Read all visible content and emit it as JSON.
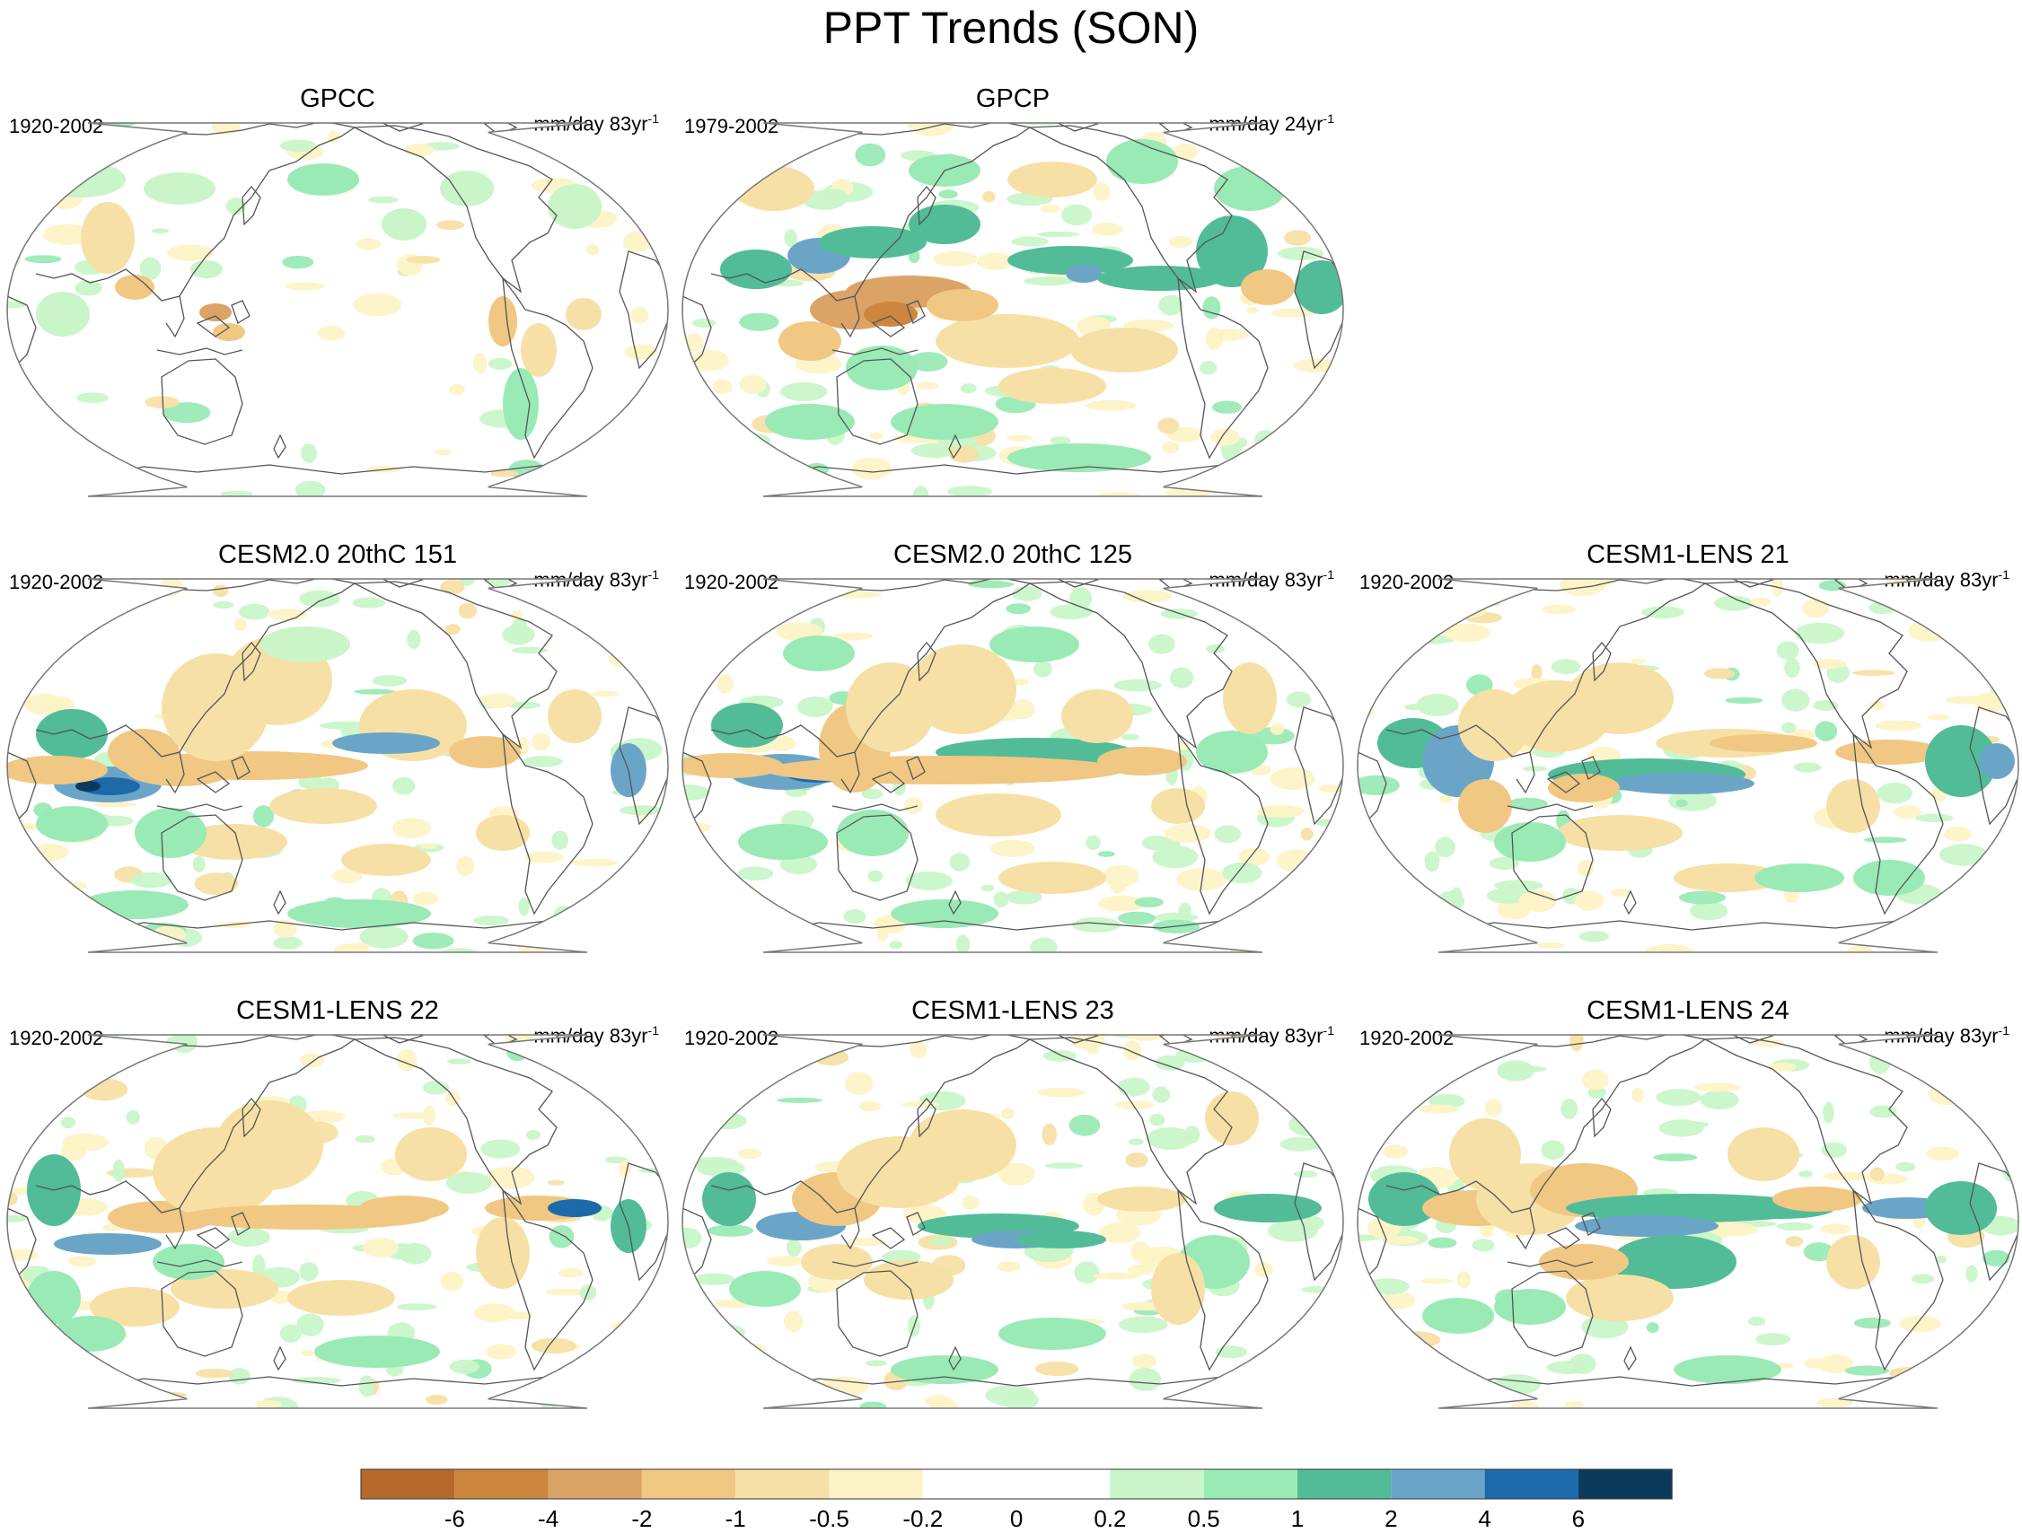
{
  "title": "PPT Trends (SON)",
  "chart_data": {
    "type": "heatmap",
    "title": "PPT Trends (SON)",
    "projection": "global map (Robinson-like), Pacific-centered",
    "panels": [
      {
        "id": "gpcc",
        "title": "GPCC",
        "period": "1920-2002",
        "unit": "mm/day 83yr",
        "unit_sup": "-1",
        "pattern": "obs-sparse"
      },
      {
        "id": "gpcp",
        "title": "GPCP",
        "period": "1979-2002",
        "unit": "mm/day 24yr",
        "unit_sup": "-1",
        "pattern": "obs-dense"
      },
      {
        "id": "cesm2-151",
        "title": "CESM2.0 20thC 151",
        "period": "1920-2002",
        "unit": "mm/day 83yr",
        "unit_sup": "-1",
        "pattern": "model-a"
      },
      {
        "id": "cesm2-125",
        "title": "CESM2.0 20thC 125",
        "period": "1920-2002",
        "unit": "mm/day 83yr",
        "unit_sup": "-1",
        "pattern": "model-b"
      },
      {
        "id": "lens21",
        "title": "CESM1-LENS 21",
        "period": "1920-2002",
        "unit": "mm/day 83yr",
        "unit_sup": "-1",
        "pattern": "model-c"
      },
      {
        "id": "lens22",
        "title": "CESM1-LENS 22",
        "period": "1920-2002",
        "unit": "mm/day 83yr",
        "unit_sup": "-1",
        "pattern": "model-d"
      },
      {
        "id": "lens23",
        "title": "CESM1-LENS 23",
        "period": "1920-2002",
        "unit": "mm/day 83yr",
        "unit_sup": "-1",
        "pattern": "model-e"
      },
      {
        "id": "lens24",
        "title": "CESM1-LENS 24",
        "period": "1920-2002",
        "unit": "mm/day 83yr",
        "unit_sup": "-1",
        "pattern": "model-f"
      }
    ],
    "colorbar": {
      "levels": [
        "-6",
        "-4",
        "-2",
        "-1",
        "-0.5",
        "-0.2",
        "0",
        "0.2",
        "0.5",
        "1",
        "2",
        "4",
        "6"
      ],
      "colors": [
        "#b5692a",
        "#cc8640",
        "#dca366",
        "#f0c883",
        "#f7e0a6",
        "#fdf3c6",
        "#ffffff",
        "#ffffff",
        "#c9f5c9",
        "#9aeab5",
        "#52bc98",
        "#6aa5c8",
        "#1c6aaa",
        "#0b3a5a"
      ]
    }
  }
}
